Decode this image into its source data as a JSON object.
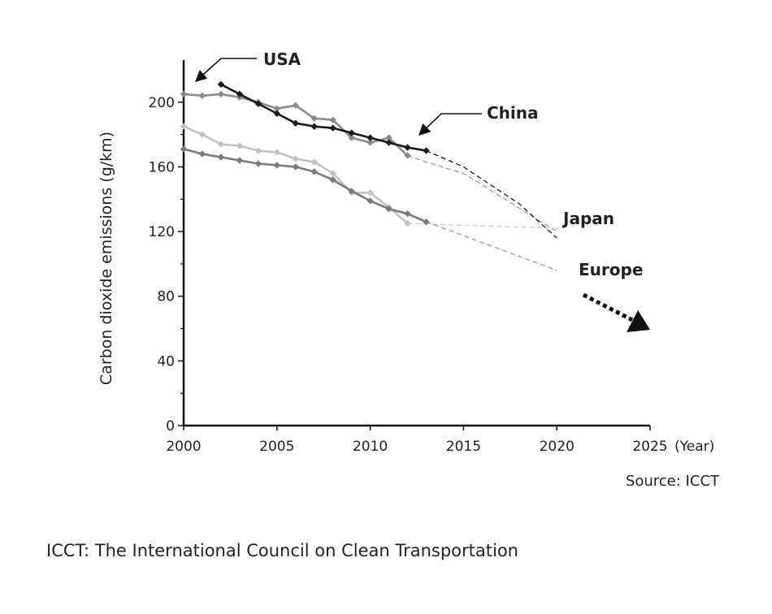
{
  "chart_data": {
    "type": "line",
    "ylabel": "Carbon dioxide emissions (g/km)",
    "x_unit_label": "(Year)",
    "xlim": [
      2000,
      2025
    ],
    "ylim": [
      0,
      220
    ],
    "x_ticks": [
      2000,
      2005,
      2010,
      2015,
      2020,
      2025
    ],
    "y_ticks": [
      0,
      40,
      80,
      120,
      160,
      200
    ],
    "y_minor_ticks": [
      20,
      60,
      100,
      140,
      180
    ],
    "grid": false,
    "source": "Source: ICCT",
    "arrow_note": "dotted arrow pointing down-right beyond 2025 indicating continued decline",
    "series": [
      {
        "name": "USA",
        "color": "#8a8a8a",
        "x": [
          2000,
          2001,
          2002,
          2003,
          2004,
          2005,
          2006,
          2007,
          2008,
          2009,
          2010,
          2011,
          2012
        ],
        "values": [
          205,
          204,
          205,
          203,
          200,
          196,
          198,
          190,
          189,
          178,
          175,
          178,
          167
        ],
        "projection": {
          "x": [
            2012,
            2013,
            2015,
            2020
          ],
          "values": [
            167,
            163,
            156,
            120
          ],
          "color": "#9a9a9a"
        }
      },
      {
        "name": "China",
        "color": "#1a1a1a",
        "x": [
          2002,
          2003,
          2004,
          2005,
          2006,
          2007,
          2008,
          2009,
          2010,
          2011,
          2012,
          2013
        ],
        "values": [
          211,
          205,
          199,
          193,
          187,
          185,
          184,
          181,
          178,
          175,
          172,
          170
        ],
        "projection": {
          "x": [
            2013,
            2015,
            2018,
            2020
          ],
          "values": [
            170,
            160,
            137,
            116
          ],
          "color": "#1a1a1a"
        }
      },
      {
        "name": "Japan",
        "color": "#c2c2c2",
        "x": [
          2000,
          2001,
          2002,
          2003,
          2004,
          2005,
          2006,
          2007,
          2008,
          2009,
          2010,
          2011,
          2012
        ],
        "values": [
          185,
          180,
          174,
          173,
          170,
          169,
          165,
          163,
          156,
          144,
          144,
          135,
          125
        ],
        "projection": {
          "x": [
            2012,
            2020
          ],
          "values": [
            125,
            122
          ],
          "color": "#c8c8c8"
        }
      },
      {
        "name": "Europe",
        "color": "#7a7a7a",
        "x": [
          2000,
          2001,
          2002,
          2003,
          2004,
          2005,
          2006,
          2007,
          2008,
          2009,
          2010,
          2011,
          2012,
          2013
        ],
        "values": [
          171,
          168,
          166,
          164,
          162,
          161,
          160,
          157,
          152,
          145,
          139,
          134,
          131,
          126
        ],
        "projection": {
          "x": [
            2013,
            2020
          ],
          "values": [
            126,
            96
          ],
          "color": "#9a9a9a"
        }
      }
    ]
  },
  "footnote": "ICCT: The International Council on Clean Transportation"
}
